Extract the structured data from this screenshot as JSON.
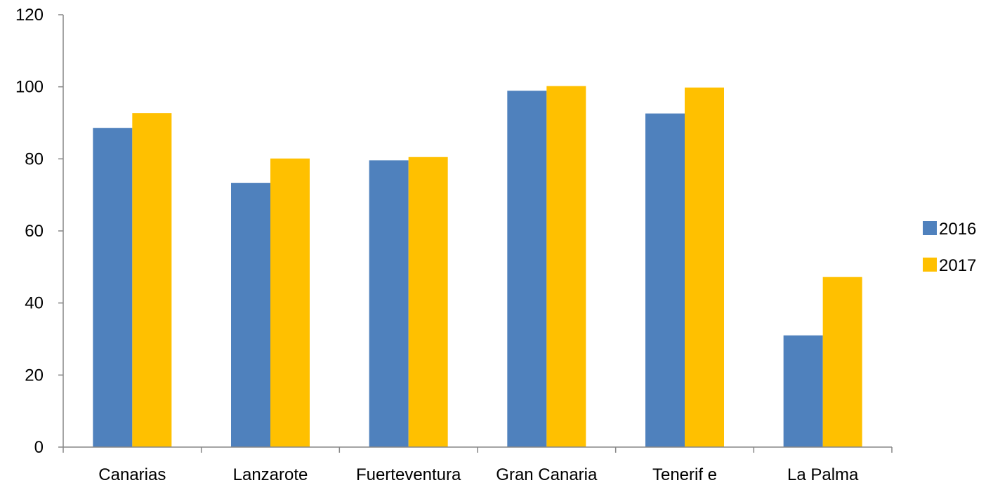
{
  "chart_data": {
    "type": "bar",
    "title": "",
    "xlabel": "",
    "ylabel": "",
    "categories": [
      "Canarias",
      "Lanzarote",
      "Fuerteventura",
      "Gran Canaria",
      "Tenerif e",
      "La Palma"
    ],
    "series": [
      {
        "name": "2016",
        "color": "#4F81BD",
        "values": [
          88.6,
          73.3,
          79.6,
          98.9,
          92.6,
          31.0
        ]
      },
      {
        "name": "2017",
        "color": "#FFC000",
        "values": [
          92.7,
          80.1,
          80.5,
          100.2,
          99.8,
          47.2
        ]
      }
    ],
    "ylim": [
      0,
      120
    ],
    "yticks": [
      0,
      20,
      40,
      60,
      80,
      100,
      120
    ],
    "grid": false,
    "legend_position": "right"
  }
}
